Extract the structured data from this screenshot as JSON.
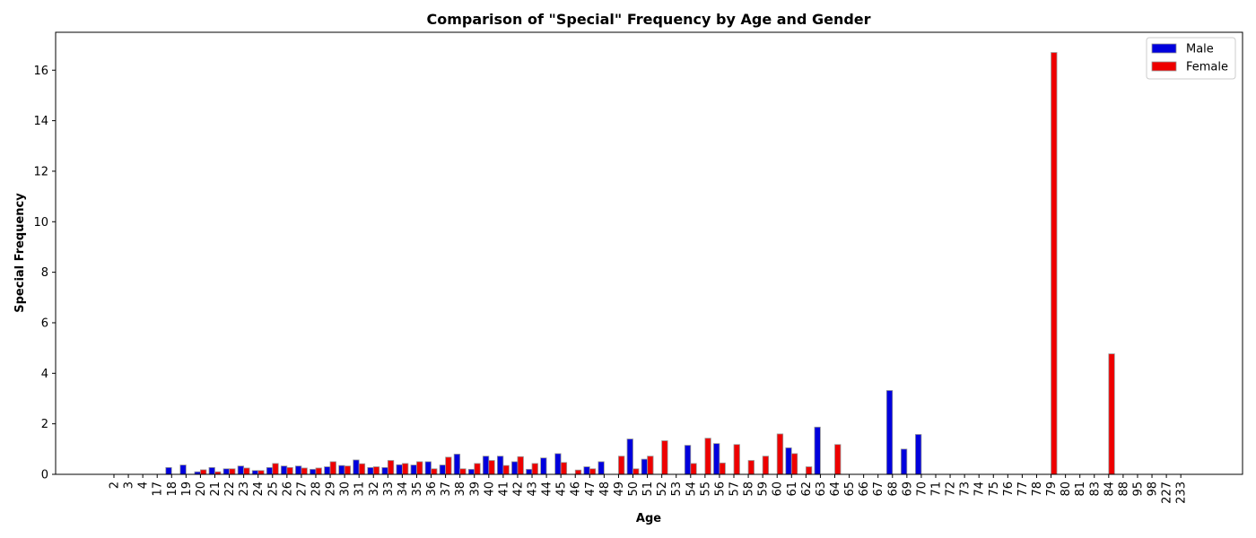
{
  "chart_data": {
    "type": "bar",
    "title": "Comparison of \"Special\" Frequency by Age and Gender",
    "xlabel": "Age",
    "ylabel": "Special Frequency",
    "ylim": [
      0,
      17.5
    ],
    "yticks": [
      0,
      2,
      4,
      6,
      8,
      10,
      12,
      14,
      16
    ],
    "grid": false,
    "legend_position": "top-right",
    "categories": [
      "2",
      "3",
      "4",
      "17",
      "18",
      "19",
      "20",
      "21",
      "22",
      "23",
      "24",
      "25",
      "26",
      "27",
      "28",
      "29",
      "30",
      "31",
      "32",
      "33",
      "34",
      "35",
      "36",
      "37",
      "38",
      "39",
      "40",
      "41",
      "42",
      "43",
      "44",
      "45",
      "46",
      "47",
      "48",
      "49",
      "50",
      "51",
      "52",
      "53",
      "54",
      "55",
      "56",
      "57",
      "58",
      "59",
      "60",
      "61",
      "62",
      "63",
      "64",
      "65",
      "66",
      "67",
      "68",
      "69",
      "70",
      "71",
      "72",
      "73",
      "74",
      "75",
      "76",
      "77",
      "78",
      "79",
      "80",
      "81",
      "83",
      "84",
      "88",
      "95",
      "98",
      "227",
      "233"
    ],
    "series": [
      {
        "name": "Male",
        "color": "#0000dd",
        "values": [
          0,
          0,
          0,
          0,
          0.27,
          0.37,
          0.1,
          0.27,
          0.22,
          0.33,
          0.15,
          0.27,
          0.33,
          0.33,
          0.2,
          0.3,
          0.35,
          0.57,
          0.27,
          0.27,
          0.38,
          0.37,
          0.5,
          0.37,
          0.8,
          0.2,
          0.72,
          0.72,
          0.5,
          0.2,
          0.65,
          0.82,
          0,
          0.3,
          0.5,
          0,
          1.4,
          0.6,
          0,
          0,
          1.15,
          0,
          1.22,
          0,
          0,
          0,
          0,
          1.05,
          0,
          1.87,
          0,
          0,
          0,
          0,
          3.32,
          1.0,
          1.58,
          0,
          0,
          0,
          0,
          0,
          0,
          0,
          0,
          0,
          0,
          0,
          0,
          0,
          0,
          0,
          0,
          0,
          0
        ]
      },
      {
        "name": "Female",
        "color": "#ee0000",
        "values": [
          0,
          0,
          0,
          0,
          0,
          0,
          0.18,
          0.1,
          0.22,
          0.25,
          0.15,
          0.43,
          0.27,
          0.25,
          0.25,
          0.5,
          0.33,
          0.42,
          0.3,
          0.55,
          0.43,
          0.5,
          0.22,
          0.68,
          0.22,
          0.43,
          0.55,
          0.35,
          0.7,
          0.43,
          0,
          0.47,
          0.17,
          0.22,
          0,
          0.72,
          0.22,
          0.72,
          1.33,
          0,
          0.43,
          1.43,
          0.45,
          1.18,
          0.55,
          0.72,
          1.6,
          0.82,
          0.3,
          0,
          1.18,
          0,
          0,
          0,
          0,
          0,
          0,
          0,
          0,
          0,
          0,
          0,
          0,
          0,
          0,
          16.7,
          0,
          0,
          0,
          4.77,
          0,
          0,
          0,
          0,
          0
        ]
      }
    ]
  }
}
